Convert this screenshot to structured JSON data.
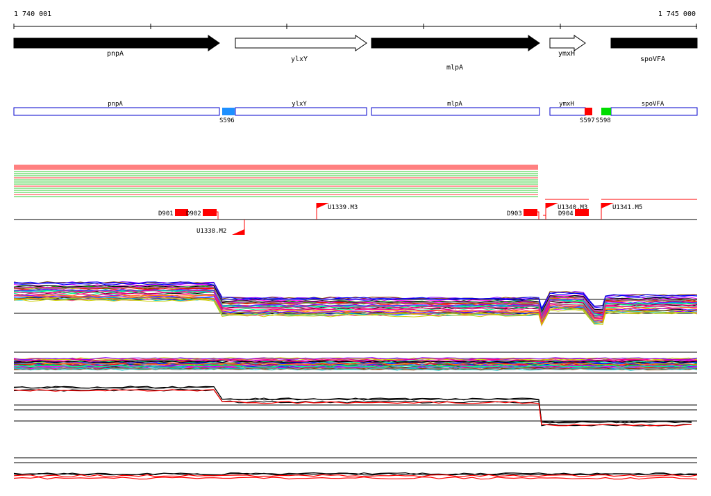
{
  "coords": {
    "start": "1 740 001",
    "end": "1 745 000"
  },
  "genes": [
    {
      "name": "pnpA",
      "strand": "+",
      "filled": true
    },
    {
      "name": "ylxY",
      "strand": "+",
      "filled": false
    },
    {
      "name": "mlpA",
      "strand": "+",
      "filled": true
    },
    {
      "name": "ymxH",
      "strand": "+",
      "filled": false
    },
    {
      "name": "spoVFA",
      "strand": "+",
      "filled": true
    }
  ],
  "annotation_track": {
    "regions": [
      "pnpA",
      "ylxY",
      "mlpA",
      "ymxH",
      "spoVFA"
    ],
    "markers": [
      {
        "label": "S596",
        "color": "#1e90ff"
      },
      {
        "label": "S597",
        "color": "#ff0000"
      },
      {
        "label": "S598",
        "color": "#00dd00"
      }
    ]
  },
  "features": {
    "dboxes": [
      "D901",
      "D902",
      "D903",
      "D904"
    ],
    "flags": [
      "U1338.M2",
      "U1339.M3",
      "U1340.M3",
      "U1341.M5"
    ]
  },
  "colors": {
    "gene_fill": "#000000",
    "region_border": "#0000cc",
    "red": "#ff0000",
    "green": "#33cc33"
  }
}
